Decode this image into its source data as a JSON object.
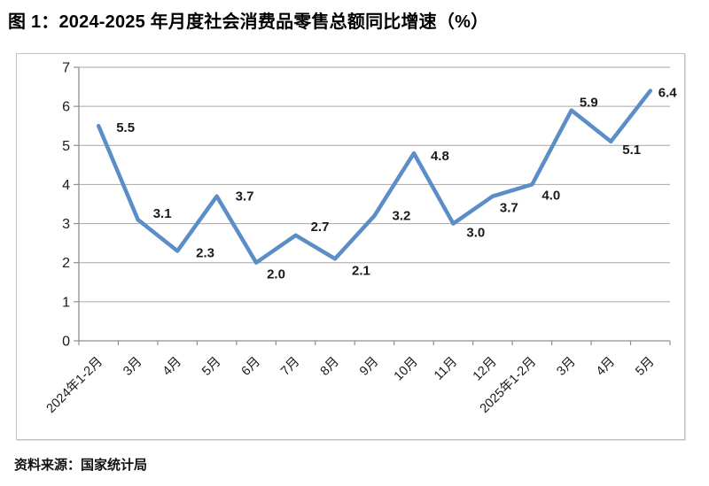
{
  "title": "图 1：2024-2025 年月度社会消费品零售总额同比增速（%）",
  "source": "资料来源：国家统计局",
  "colors": {
    "line": "#5B8DC6",
    "grid": "#A6A6A6",
    "axis": "#8F8F8F",
    "tick": "#8F8F8F",
    "data_label": "#1A1A1A",
    "axis_label": "#1A1A1A",
    "border": "#C3C3C3"
  },
  "chart_data": {
    "type": "line",
    "title": "图 1：2024-2025 年月度社会消费品零售总额同比增速（%）",
    "categories": [
      "2024年1-2月",
      "3月",
      "4月",
      "5月",
      "6月",
      "7月",
      "8月",
      "9月",
      "10月",
      "11月",
      "12月",
      "2025年1-2月",
      "3月",
      "4月",
      "5月"
    ],
    "values": [
      5.5,
      3.1,
      2.3,
      3.7,
      2.0,
      2.7,
      2.1,
      3.2,
      4.8,
      3.0,
      3.7,
      4.0,
      5.9,
      5.1,
      6.4
    ],
    "data_labels": [
      "5.5",
      "3.1",
      "2.3",
      "3.7",
      "2.0",
      "2.7",
      "2.1",
      "3.2",
      "4.8",
      "3.0",
      "3.7",
      "4.0",
      "5.9",
      "5.1",
      "6.4"
    ],
    "xlabel": "",
    "ylabel": "",
    "ylim": [
      0,
      7
    ],
    "ytick_step": 1,
    "yticks": [
      "0",
      "1",
      "2",
      "3",
      "4",
      "5",
      "6",
      "7"
    ],
    "grid": "horizontal",
    "legend": "none"
  }
}
